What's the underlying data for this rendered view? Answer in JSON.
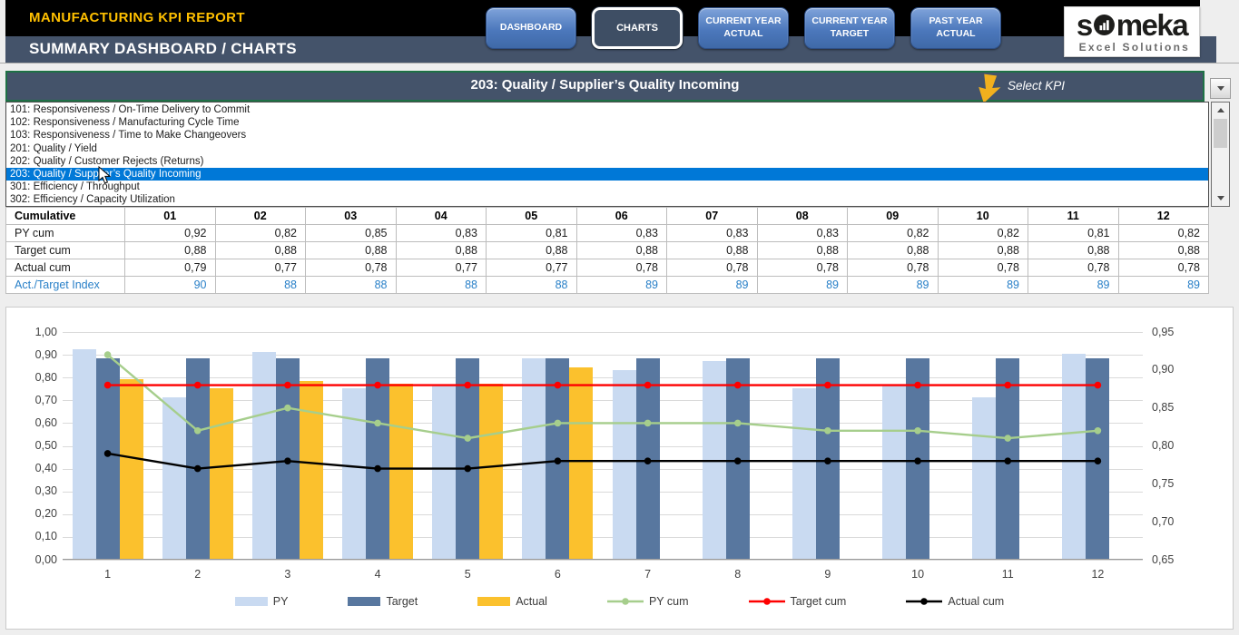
{
  "header": {
    "title": "MANUFACTURING KPI REPORT",
    "subtitle": "SUMMARY DASHBOARD / CHARTS",
    "nav_buttons": [
      {
        "id": "dashboard",
        "lines": [
          "DASHBOARD"
        ],
        "active": false
      },
      {
        "id": "charts",
        "lines": [
          "CHARTS"
        ],
        "active": true
      },
      {
        "id": "current-year-actual",
        "lines": [
          "CURRENT YEAR",
          "ACTUAL"
        ],
        "active": false
      },
      {
        "id": "current-year-target",
        "lines": [
          "CURRENT YEAR",
          "TARGET"
        ],
        "active": false
      },
      {
        "id": "past-year-actual",
        "lines": [
          "PAST YEAR",
          "ACTUAL"
        ],
        "active": false
      }
    ],
    "logo": {
      "brand_left": "s",
      "brand_right": "meka",
      "tagline": "Excel Solutions"
    }
  },
  "kpi_selector": {
    "selected_label": "203: Quality / Supplier’s Quality Incoming",
    "hint": "Select KPI",
    "options": [
      {
        "label": "101: Responsiveness / On-Time Delivery to Commit",
        "selected": false
      },
      {
        "label": "102: Responsiveness / Manufacturing Cycle Time",
        "selected": false
      },
      {
        "label": "103: Responsiveness / Time to Make Changeovers",
        "selected": false
      },
      {
        "label": "201: Quality / Yield",
        "selected": false
      },
      {
        "label": "202: Quality / Customer Rejects (Returns)",
        "selected": false
      },
      {
        "label": "203: Quality / Supplier’s Quality Incoming",
        "selected": true
      },
      {
        "label": "301: Efficiency / Throughput",
        "selected": false
      },
      {
        "label": "302: Efficiency / Capacity Utilization",
        "selected": false
      }
    ]
  },
  "table": {
    "corner_label": "Cumulative",
    "columns": [
      "01",
      "02",
      "03",
      "04",
      "05",
      "06",
      "07",
      "08",
      "09",
      "10",
      "11",
      "12"
    ],
    "rows": [
      {
        "label": "PY cum",
        "style": "normal",
        "values": [
          "0,92",
          "0,82",
          "0,85",
          "0,83",
          "0,81",
          "0,83",
          "0,83",
          "0,83",
          "0,82",
          "0,82",
          "0,81",
          "0,82"
        ]
      },
      {
        "label": "Target cum",
        "style": "normal",
        "values": [
          "0,88",
          "0,88",
          "0,88",
          "0,88",
          "0,88",
          "0,88",
          "0,88",
          "0,88",
          "0,88",
          "0,88",
          "0,88",
          "0,88"
        ]
      },
      {
        "label": "Actual cum",
        "style": "normal",
        "values": [
          "0,79",
          "0,77",
          "0,78",
          "0,77",
          "0,77",
          "0,78",
          "0,78",
          "0,78",
          "0,78",
          "0,78",
          "0,78",
          "0,78"
        ]
      },
      {
        "label": "Act./Target Index",
        "style": "index",
        "values": [
          "90",
          "88",
          "88",
          "88",
          "88",
          "89",
          "89",
          "89",
          "89",
          "89",
          "89",
          "89"
        ]
      }
    ]
  },
  "chart_data": {
    "type": "combo bar+line",
    "categories": [
      "1",
      "2",
      "3",
      "4",
      "5",
      "6",
      "7",
      "8",
      "9",
      "10",
      "11",
      "12"
    ],
    "series": [
      {
        "name": "PY",
        "type": "bar",
        "axis": "left",
        "color": "#c9daf1",
        "values": [
          0.92,
          0.71,
          0.91,
          0.75,
          0.76,
          0.88,
          0.83,
          0.87,
          0.75,
          0.76,
          0.71,
          0.9
        ]
      },
      {
        "name": "Target",
        "type": "bar",
        "axis": "left",
        "color": "#58779f",
        "values": [
          0.88,
          0.88,
          0.88,
          0.88,
          0.88,
          0.88,
          0.88,
          0.88,
          0.88,
          0.88,
          0.88,
          0.88
        ]
      },
      {
        "name": "Actual",
        "type": "bar",
        "axis": "left",
        "color": "#fbc12d",
        "values": [
          0.79,
          0.75,
          0.78,
          0.77,
          0.77,
          0.84,
          null,
          null,
          null,
          null,
          null,
          null
        ]
      },
      {
        "name": "PY cum",
        "type": "line",
        "axis": "right",
        "color": "#a6ce8c",
        "values": [
          0.92,
          0.82,
          0.85,
          0.83,
          0.81,
          0.83,
          0.83,
          0.83,
          0.82,
          0.82,
          0.81,
          0.82
        ]
      },
      {
        "name": "Target cum",
        "type": "line",
        "axis": "right",
        "color": "#fe0000",
        "values": [
          0.88,
          0.88,
          0.88,
          0.88,
          0.88,
          0.88,
          0.88,
          0.88,
          0.88,
          0.88,
          0.88,
          0.88
        ]
      },
      {
        "name": "Actual cum",
        "type": "line",
        "axis": "right",
        "color": "#000000",
        "values": [
          0.79,
          0.77,
          0.78,
          0.77,
          0.77,
          0.78,
          0.78,
          0.78,
          0.78,
          0.78,
          0.78,
          0.78
        ]
      }
    ],
    "left_axis": {
      "min": 0.0,
      "max": 1.0,
      "step": 0.1,
      "tick_labels": [
        "1,00",
        "0,90",
        "0,80",
        "0,70",
        "0,60",
        "0,50",
        "0,40",
        "0,30",
        "0,20",
        "0,10",
        "0,00"
      ]
    },
    "right_axis": {
      "min": 0.65,
      "max": 0.95,
      "step": 0.05,
      "tick_labels": [
        "0,95",
        "0,90",
        "0,85",
        "0,80",
        "0,75",
        "0,70",
        "0,65"
      ]
    },
    "grid": true,
    "legend_position": "bottom"
  }
}
